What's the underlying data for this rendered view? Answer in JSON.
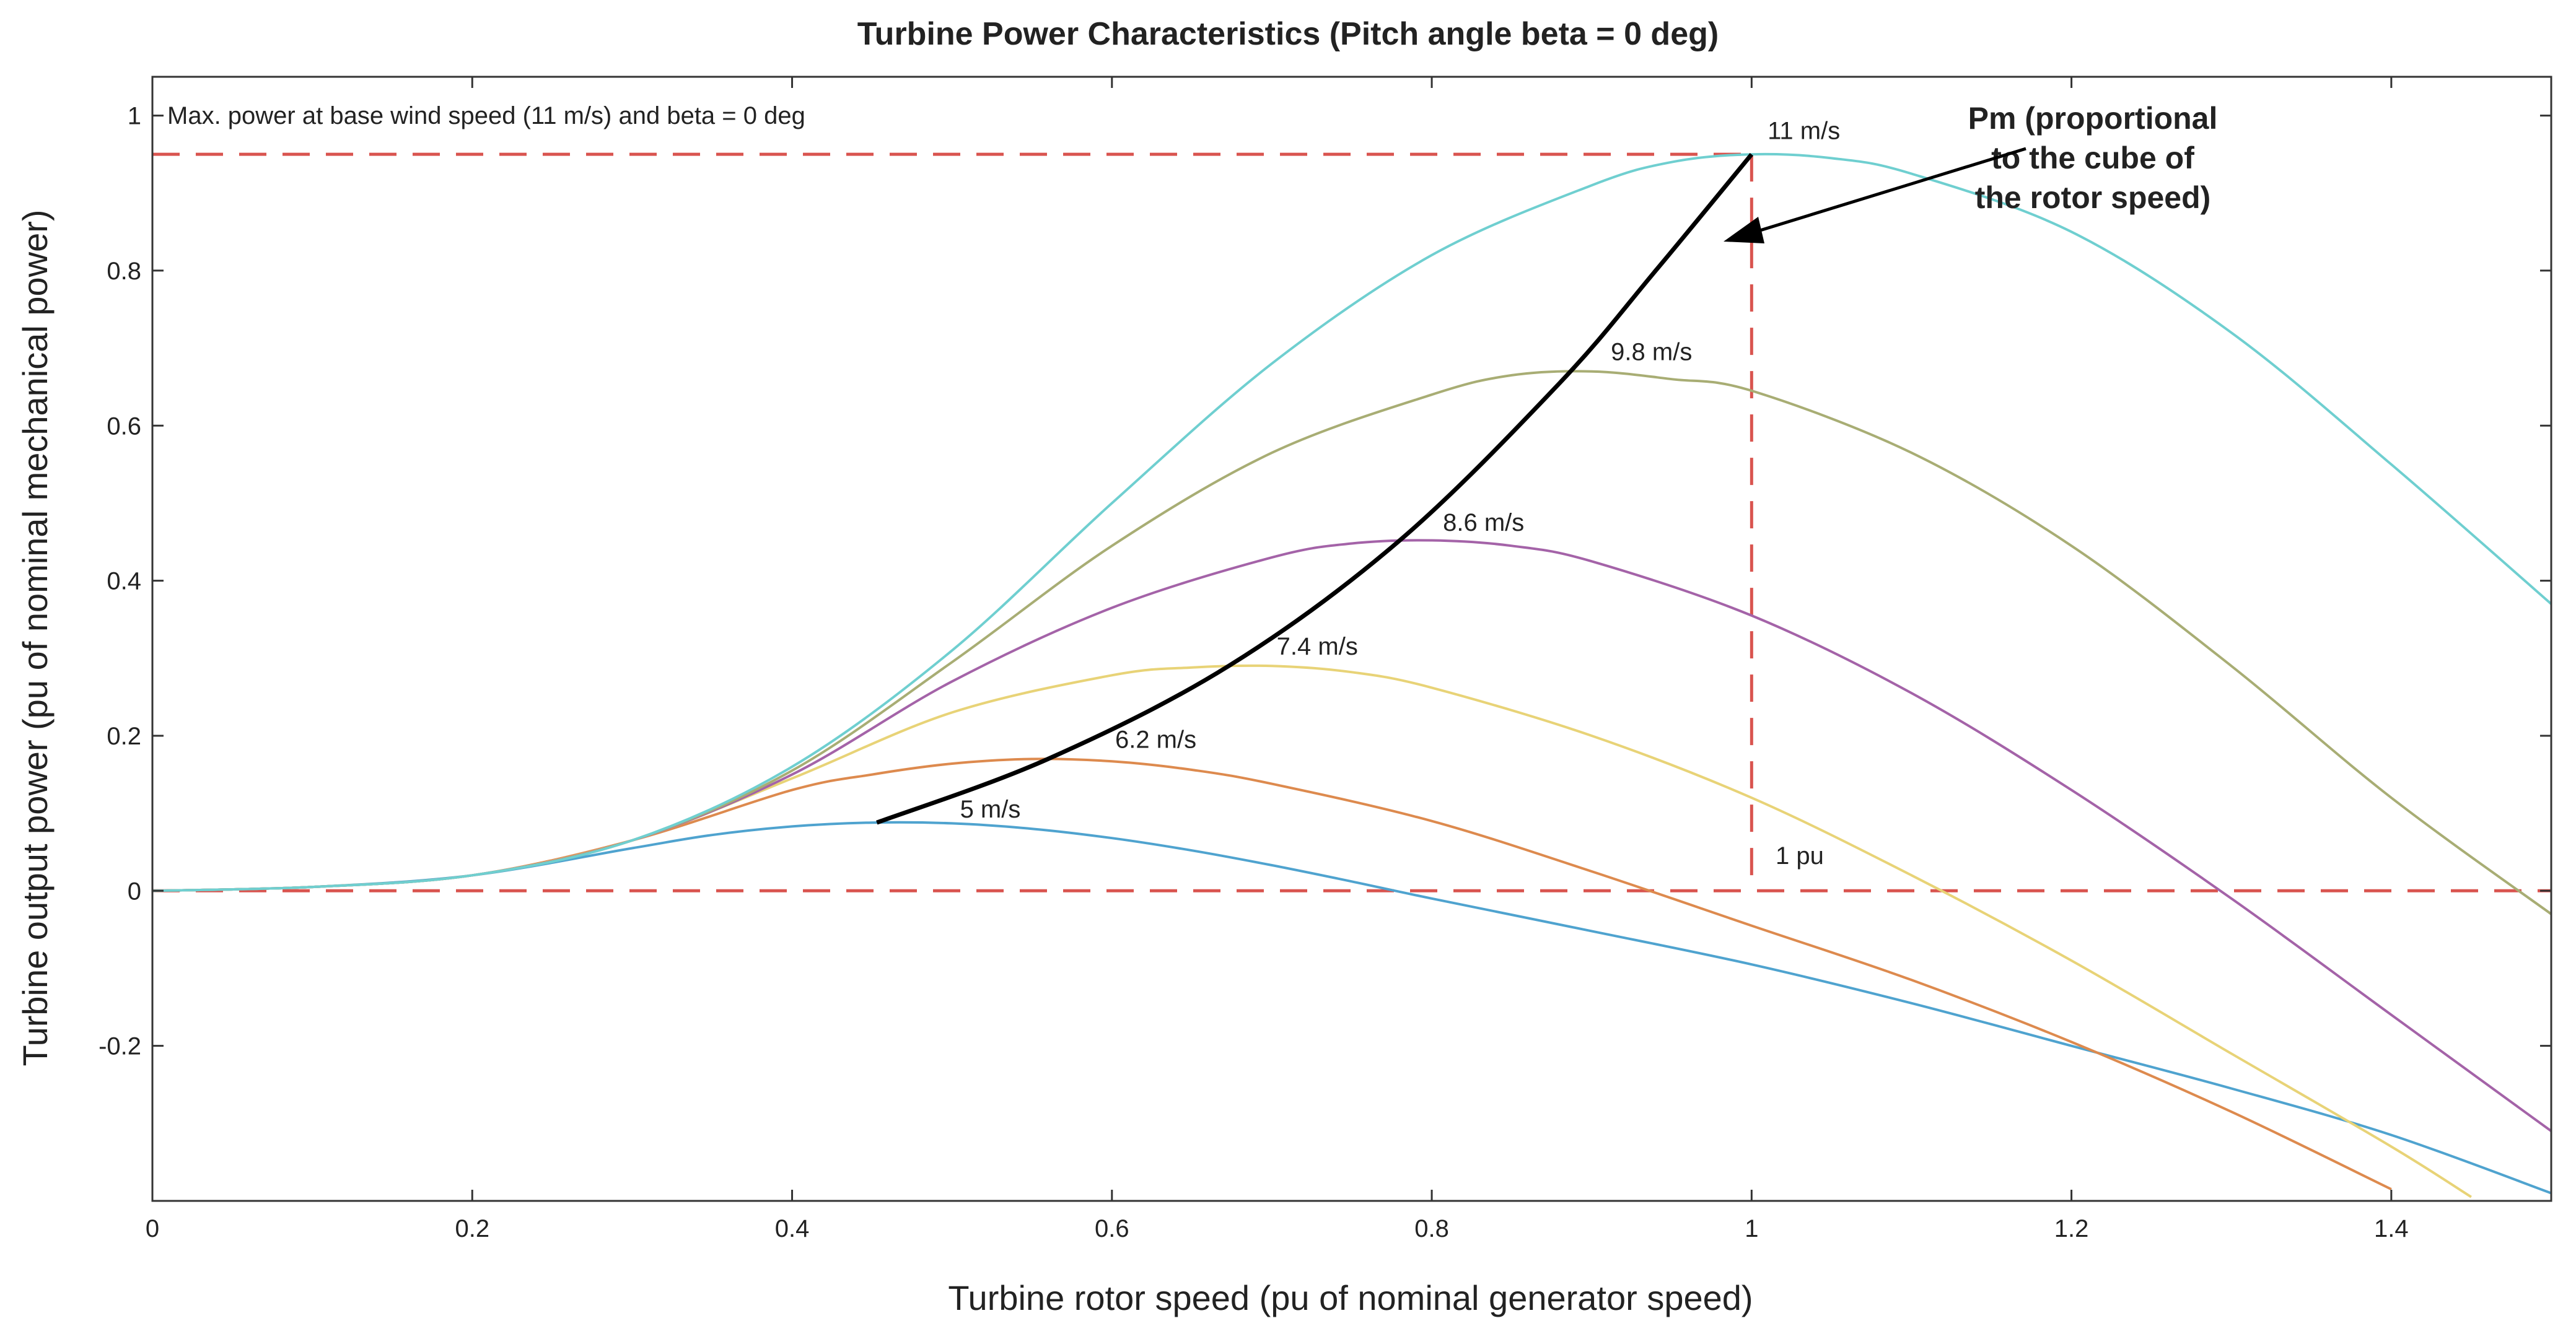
{
  "chart_data": {
    "type": "line",
    "title": "Turbine Power Characteristics (Pitch angle beta = 0 deg)",
    "xlabel": "Turbine rotor speed (pu of nominal generator speed)",
    "ylabel": "Turbine output power (pu of nominal mechanical power)",
    "xlim": [
      0,
      1.5
    ],
    "ylim": [
      -0.4,
      1.05
    ],
    "xticks": [
      0,
      0.2,
      0.4,
      0.6,
      0.8,
      1,
      1.2,
      1.4
    ],
    "xtick_labels": [
      "0",
      "0.2",
      "0.4",
      "0.6",
      "0.8",
      "1",
      "1.2",
      "1.4"
    ],
    "yticks": [
      -0.2,
      0,
      0.2,
      0.4,
      0.6,
      0.8,
      1
    ],
    "ytick_labels": [
      "-0.2",
      "0",
      "0.2",
      "0.4",
      "0.6",
      "0.8",
      "1"
    ],
    "grid": false,
    "series": [
      {
        "name": "5 m/s",
        "color": "#4fa3cf",
        "label": "5 m/s",
        "x": [
          0,
          0.1,
          0.2,
          0.3,
          0.35,
          0.4,
          0.45,
          0.5,
          0.55,
          0.6,
          0.65,
          0.7,
          0.75,
          0.8,
          0.9,
          1.0,
          1.1,
          1.2,
          1.3,
          1.4,
          1.5
        ],
        "y": [
          0,
          0.005,
          0.02,
          0.055,
          0.072,
          0.083,
          0.088,
          0.087,
          0.08,
          0.068,
          0.052,
          0.033,
          0.012,
          -0.01,
          -0.052,
          -0.095,
          -0.145,
          -0.2,
          -0.255,
          -0.315,
          -0.39
        ]
      },
      {
        "name": "6.2 m/s",
        "color": "#dd8a4e",
        "label": "6.2 m/s",
        "x": [
          0,
          0.1,
          0.2,
          0.3,
          0.4,
          0.45,
          0.5,
          0.55,
          0.6,
          0.65,
          0.7,
          0.8,
          0.9,
          1.0,
          1.1,
          1.2,
          1.3,
          1.4
        ],
        "y": [
          0,
          0.005,
          0.02,
          0.065,
          0.13,
          0.15,
          0.164,
          0.17,
          0.167,
          0.156,
          0.138,
          0.09,
          0.025,
          -0.045,
          -0.115,
          -0.195,
          -0.285,
          -0.385
        ]
      },
      {
        "name": "7.4 m/s",
        "color": "#e8d377",
        "label": "7.4 m/s",
        "x": [
          0,
          0.1,
          0.2,
          0.3,
          0.4,
          0.5,
          0.6,
          0.65,
          0.7,
          0.75,
          0.8,
          0.9,
          1.0,
          1.1,
          1.2,
          1.3,
          1.4,
          1.45
        ],
        "y": [
          0,
          0.005,
          0.02,
          0.065,
          0.145,
          0.23,
          0.278,
          0.288,
          0.29,
          0.282,
          0.262,
          0.2,
          0.12,
          0.02,
          -0.09,
          -0.21,
          -0.33,
          -0.395
        ]
      },
      {
        "name": "8.6 m/s",
        "color": "#a463a8",
        "label": "8.6 m/s",
        "x": [
          0,
          0.1,
          0.2,
          0.3,
          0.4,
          0.5,
          0.6,
          0.7,
          0.75,
          0.8,
          0.85,
          0.9,
          1.0,
          1.1,
          1.2,
          1.3,
          1.4,
          1.5
        ],
        "y": [
          0,
          0.005,
          0.02,
          0.065,
          0.15,
          0.27,
          0.365,
          0.43,
          0.448,
          0.452,
          0.445,
          0.425,
          0.355,
          0.255,
          0.13,
          -0.01,
          -0.16,
          -0.31
        ]
      },
      {
        "name": "9.8 m/s",
        "color": "#a8ad74",
        "label": "9.8 m/s",
        "x": [
          0,
          0.1,
          0.2,
          0.3,
          0.4,
          0.5,
          0.6,
          0.7,
          0.8,
          0.85,
          0.9,
          0.95,
          1.0,
          1.1,
          1.2,
          1.3,
          1.4,
          1.5
        ],
        "y": [
          0,
          0.005,
          0.02,
          0.065,
          0.155,
          0.295,
          0.445,
          0.565,
          0.64,
          0.665,
          0.67,
          0.66,
          0.645,
          0.565,
          0.445,
          0.29,
          0.12,
          -0.03
        ]
      },
      {
        "name": "11 m/s",
        "color": "#6fcfd0",
        "label": "11 m/s",
        "x": [
          0,
          0.1,
          0.2,
          0.3,
          0.4,
          0.5,
          0.6,
          0.7,
          0.8,
          0.9,
          0.95,
          1.0,
          1.05,
          1.1,
          1.2,
          1.3,
          1.4,
          1.5
        ],
        "y": [
          0,
          0.005,
          0.02,
          0.065,
          0.16,
          0.31,
          0.5,
          0.68,
          0.82,
          0.91,
          0.94,
          0.95,
          0.945,
          0.925,
          0.85,
          0.72,
          0.55,
          0.37
        ]
      },
      {
        "name": "Pm",
        "color": "#000000",
        "label": "",
        "x": [
          0.453,
          0.56,
          0.673,
          0.78,
          0.88,
          0.94,
          1.0
        ],
        "y": [
          0.088,
          0.17,
          0.29,
          0.452,
          0.655,
          0.8,
          0.95
        ]
      }
    ],
    "reference_lines": {
      "color": "#d9544f",
      "max_power_y": 0.95,
      "zero_y": 0,
      "base_speed_x": 1
    },
    "annotations": {
      "max_power_note": "Max. power at base wind speed (11 m/s) and beta = 0 deg",
      "one_pu": "1 pu",
      "pm_lines": [
        "Pm (proportional",
        "to the cube of",
        "the rotor speed)"
      ]
    }
  }
}
